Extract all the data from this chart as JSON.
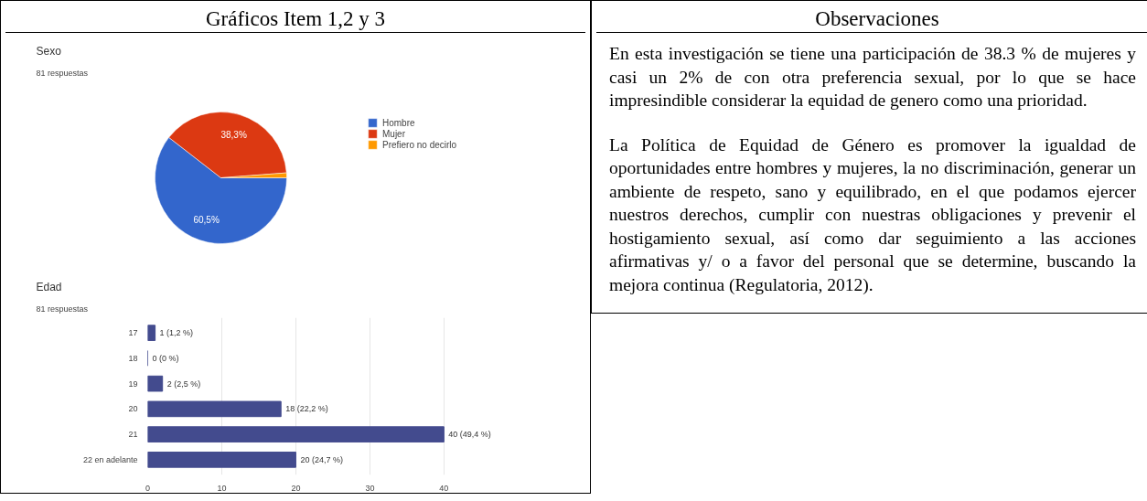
{
  "chart_data": [
    {
      "type": "other",
      "title": "Gráficos Item 1,2 y 3"
    },
    {
      "type": "pie",
      "title": "Sexo",
      "subtitle": "81 respuestas",
      "categories": [
        "Hombre",
        "Mujer",
        "Prefiero no decirlo"
      ],
      "values": [
        60.5,
        38.3,
        1.2
      ],
      "colors": [
        "#3366cc",
        "#dc3912",
        "#ff9900"
      ],
      "value_labels": [
        "60,5%",
        "38,3%",
        null
      ],
      "legend": "right"
    },
    {
      "type": "bar",
      "orientation": "horizontal",
      "title": "Edad",
      "subtitle": "81 respuestas",
      "categories": [
        "17",
        "18",
        "19",
        "20",
        "21",
        "22 en adelante"
      ],
      "values": [
        1,
        0,
        2,
        18,
        40,
        20
      ],
      "color": "#434b8e",
      "value_labels": [
        "1 (1,2 %)",
        "0 (0 %)",
        "2 (2,5 %)",
        "18 (22,2 %)",
        "40 (49,4 %)",
        "20 (24,7 %)"
      ],
      "xlim": [
        0,
        40
      ],
      "xticks": [
        0,
        10,
        20,
        30,
        40
      ],
      "grid": "x"
    },
    {
      "type": "other",
      "title": "Observaciones",
      "annotations": [
        "En esta investigación se tiene una participación de 38.3 % de mujeres y casi un 2% de con otra preferencia sexual, por lo que se hace impresindible considerar la equidad de genero como una prioridad.",
        "La Política de Equidad de Género es promover la igualdad de oportunidades entre hombres y mujeres, la no discriminación, generar un ambiente de respeto, sano y equilibrado, en el que podamos ejercer nuestros derechos, cumplir con nuestras obligaciones y prevenir el hostigamiento sexual, así como dar seguimiento a las acciones afirmativas y/ o a favor del personal que se determine, buscando la mejora continua (Regulatoria, 2012)."
      ]
    }
  ]
}
